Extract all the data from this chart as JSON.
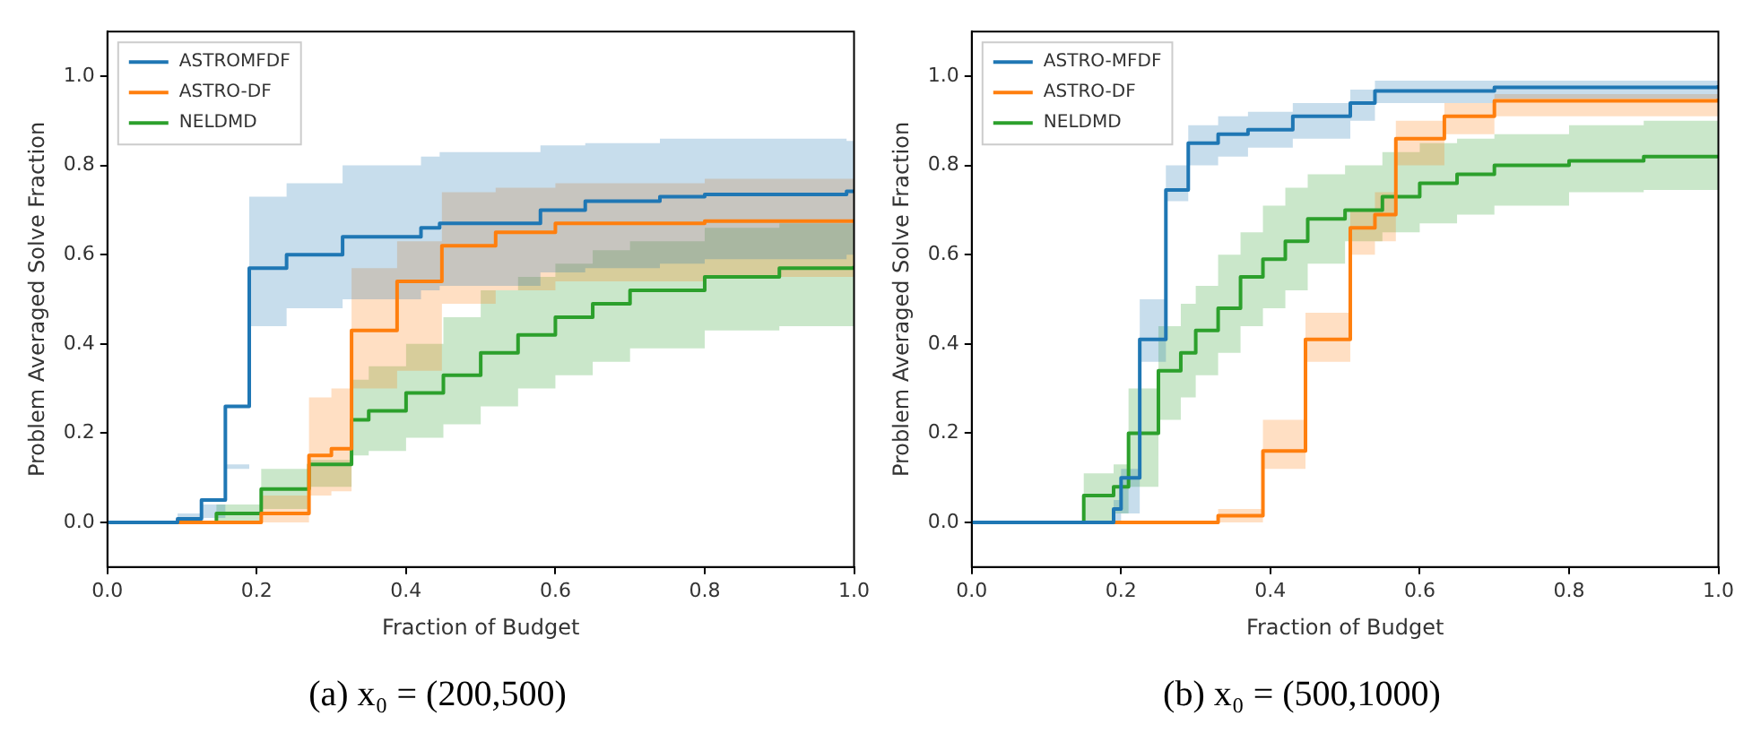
{
  "chart_data": [
    {
      "type": "step",
      "title": "(a) x₀ = (200,500)",
      "xlabel": "Fraction of Budget",
      "ylabel": "Problem Averaged Solve Fraction",
      "xlim": [
        0,
        1
      ],
      "ylim": [
        -0.1,
        1.1
      ],
      "xticks": [
        {
          "value": 0,
          "label": "0.0"
        },
        {
          "value": 0.2,
          "label": "0.2"
        },
        {
          "value": 0.4,
          "label": "0.4"
        },
        {
          "value": 0.6,
          "label": "0.6"
        },
        {
          "value": 0.8,
          "label": "0.8"
        },
        {
          "value": 1,
          "label": "1.0"
        }
      ],
      "yticks": [
        {
          "value": 0,
          "label": "0.0"
        },
        {
          "value": 0.2,
          "label": "0.2"
        },
        {
          "value": 0.4,
          "label": "0.4"
        },
        {
          "value": 0.6,
          "label": "0.6"
        },
        {
          "value": 0.8,
          "label": "0.8"
        },
        {
          "value": 1,
          "label": "1.0"
        }
      ],
      "grid": false,
      "legend": "top left",
      "marker": "none",
      "line_style": "solid",
      "series": [
        {
          "name": "ASTROMFDF",
          "color": "#1f77b4",
          "x": [
            0,
            0.094,
            0.126,
            0.158,
            0.19,
            0.24,
            0.315,
            0.42,
            0.445,
            0.58,
            0.64,
            0.74,
            0.8,
            0.99,
            1
          ],
          "values": [
            0,
            0.008,
            0.05,
            0.26,
            0.57,
            0.6,
            0.64,
            0.66,
            0.67,
            0.7,
            0.72,
            0.73,
            0.735,
            0.742,
            0.742
          ],
          "lower": [
            0,
            0,
            0.01,
            0.13,
            0.44,
            0.48,
            0.5,
            0.52,
            0.53,
            0.56,
            0.57,
            0.58,
            0.59,
            0.6,
            0.6
          ],
          "upper": [
            0,
            0.02,
            0.04,
            0.12,
            0.73,
            0.76,
            0.8,
            0.82,
            0.83,
            0.845,
            0.85,
            0.86,
            0.86,
            0.855,
            0.855
          ]
        },
        {
          "name": "ASTRO-DF",
          "color": "#ff7f0e",
          "x": [
            0,
            0.206,
            0.27,
            0.3,
            0.327,
            0.388,
            0.448,
            0.52,
            0.6,
            0.8,
            1
          ],
          "values": [
            0,
            0.02,
            0.15,
            0.165,
            0.43,
            0.54,
            0.62,
            0.65,
            0.67,
            0.675,
            0.675
          ],
          "lower": [
            0,
            0,
            0.06,
            0.07,
            0.3,
            0.34,
            0.49,
            0.52,
            0.54,
            0.55,
            0.56
          ],
          "upper": [
            0,
            0.06,
            0.28,
            0.3,
            0.57,
            0.63,
            0.74,
            0.75,
            0.76,
            0.77,
            0.78
          ]
        },
        {
          "name": "NELDMD",
          "color": "#2ca02c",
          "x": [
            0,
            0.146,
            0.206,
            0.27,
            0.327,
            0.35,
            0.4,
            0.45,
            0.5,
            0.55,
            0.6,
            0.65,
            0.7,
            0.8,
            0.9,
            1
          ],
          "values": [
            0,
            0.02,
            0.075,
            0.13,
            0.23,
            0.25,
            0.29,
            0.33,
            0.38,
            0.42,
            0.46,
            0.49,
            0.52,
            0.55,
            0.57,
            0.575
          ],
          "lower": [
            0,
            0,
            0.03,
            0.08,
            0.15,
            0.16,
            0.19,
            0.22,
            0.26,
            0.3,
            0.33,
            0.36,
            0.39,
            0.43,
            0.44,
            0.45
          ],
          "upper": [
            0,
            0.04,
            0.12,
            0.14,
            0.32,
            0.35,
            0.4,
            0.46,
            0.52,
            0.55,
            0.58,
            0.61,
            0.63,
            0.66,
            0.67,
            0.68
          ]
        }
      ]
    },
    {
      "type": "step",
      "title": "(b) x₀ = (500,1000)",
      "xlabel": "Fraction of Budget",
      "ylabel": "Problem Averaged Solve Fraction",
      "xlim": [
        0,
        1
      ],
      "ylim": [
        -0.1,
        1.1
      ],
      "xticks": [
        {
          "value": 0,
          "label": "0.0"
        },
        {
          "value": 0.2,
          "label": "0.2"
        },
        {
          "value": 0.4,
          "label": "0.4"
        },
        {
          "value": 0.6,
          "label": "0.6"
        },
        {
          "value": 0.8,
          "label": "0.8"
        },
        {
          "value": 1,
          "label": "1.0"
        }
      ],
      "yticks": [
        {
          "value": 0,
          "label": "0.0"
        },
        {
          "value": 0.2,
          "label": "0.2"
        },
        {
          "value": 0.4,
          "label": "0.4"
        },
        {
          "value": 0.6,
          "label": "0.6"
        },
        {
          "value": 0.8,
          "label": "0.8"
        },
        {
          "value": 1,
          "label": "1.0"
        }
      ],
      "grid": false,
      "legend": "top left",
      "marker": "none",
      "line_style": "solid",
      "series": [
        {
          "name": "ASTRO-MFDF",
          "color": "#1f77b4",
          "x": [
            0,
            0.19,
            0.2,
            0.225,
            0.26,
            0.29,
            0.33,
            0.37,
            0.43,
            0.507,
            0.54,
            0.7,
            1
          ],
          "values": [
            0,
            0.03,
            0.1,
            0.41,
            0.745,
            0.85,
            0.87,
            0.88,
            0.91,
            0.94,
            0.967,
            0.975,
            0.98
          ],
          "lower": [
            0,
            0,
            0.02,
            0.36,
            0.72,
            0.8,
            0.82,
            0.84,
            0.86,
            0.9,
            0.94,
            0.95,
            0.96
          ],
          "upper": [
            0,
            0.05,
            0.12,
            0.5,
            0.8,
            0.89,
            0.91,
            0.92,
            0.94,
            0.97,
            0.99,
            0.99,
            0.995
          ]
        },
        {
          "name": "ASTRO-DF",
          "color": "#ff7f0e",
          "x": [
            0,
            0.33,
            0.39,
            0.447,
            0.507,
            0.54,
            0.568,
            0.633,
            0.7,
            1
          ],
          "values": [
            0,
            0.015,
            0.16,
            0.41,
            0.66,
            0.69,
            0.86,
            0.91,
            0.945,
            0.95
          ],
          "lower": [
            0,
            0,
            0.12,
            0.36,
            0.6,
            0.63,
            0.8,
            0.87,
            0.91,
            0.93
          ],
          "upper": [
            0,
            0.03,
            0.23,
            0.47,
            0.7,
            0.74,
            0.9,
            0.94,
            0.96,
            0.97
          ]
        },
        {
          "name": "NELDMD",
          "color": "#2ca02c",
          "x": [
            0,
            0.15,
            0.19,
            0.21,
            0.25,
            0.28,
            0.3,
            0.33,
            0.36,
            0.39,
            0.42,
            0.45,
            0.5,
            0.55,
            0.6,
            0.65,
            0.7,
            0.8,
            0.9,
            1
          ],
          "values": [
            0,
            0.06,
            0.08,
            0.2,
            0.34,
            0.38,
            0.43,
            0.48,
            0.55,
            0.59,
            0.63,
            0.68,
            0.7,
            0.73,
            0.76,
            0.78,
            0.8,
            0.81,
            0.82,
            0.82
          ],
          "lower": [
            0,
            0,
            0.02,
            0.08,
            0.23,
            0.28,
            0.33,
            0.38,
            0.44,
            0.48,
            0.52,
            0.58,
            0.63,
            0.65,
            0.67,
            0.69,
            0.71,
            0.74,
            0.745,
            0.75
          ],
          "upper": [
            0,
            0.11,
            0.13,
            0.3,
            0.44,
            0.49,
            0.53,
            0.6,
            0.65,
            0.71,
            0.75,
            0.78,
            0.8,
            0.83,
            0.85,
            0.86,
            0.87,
            0.89,
            0.9,
            0.91
          ]
        }
      ]
    }
  ]
}
